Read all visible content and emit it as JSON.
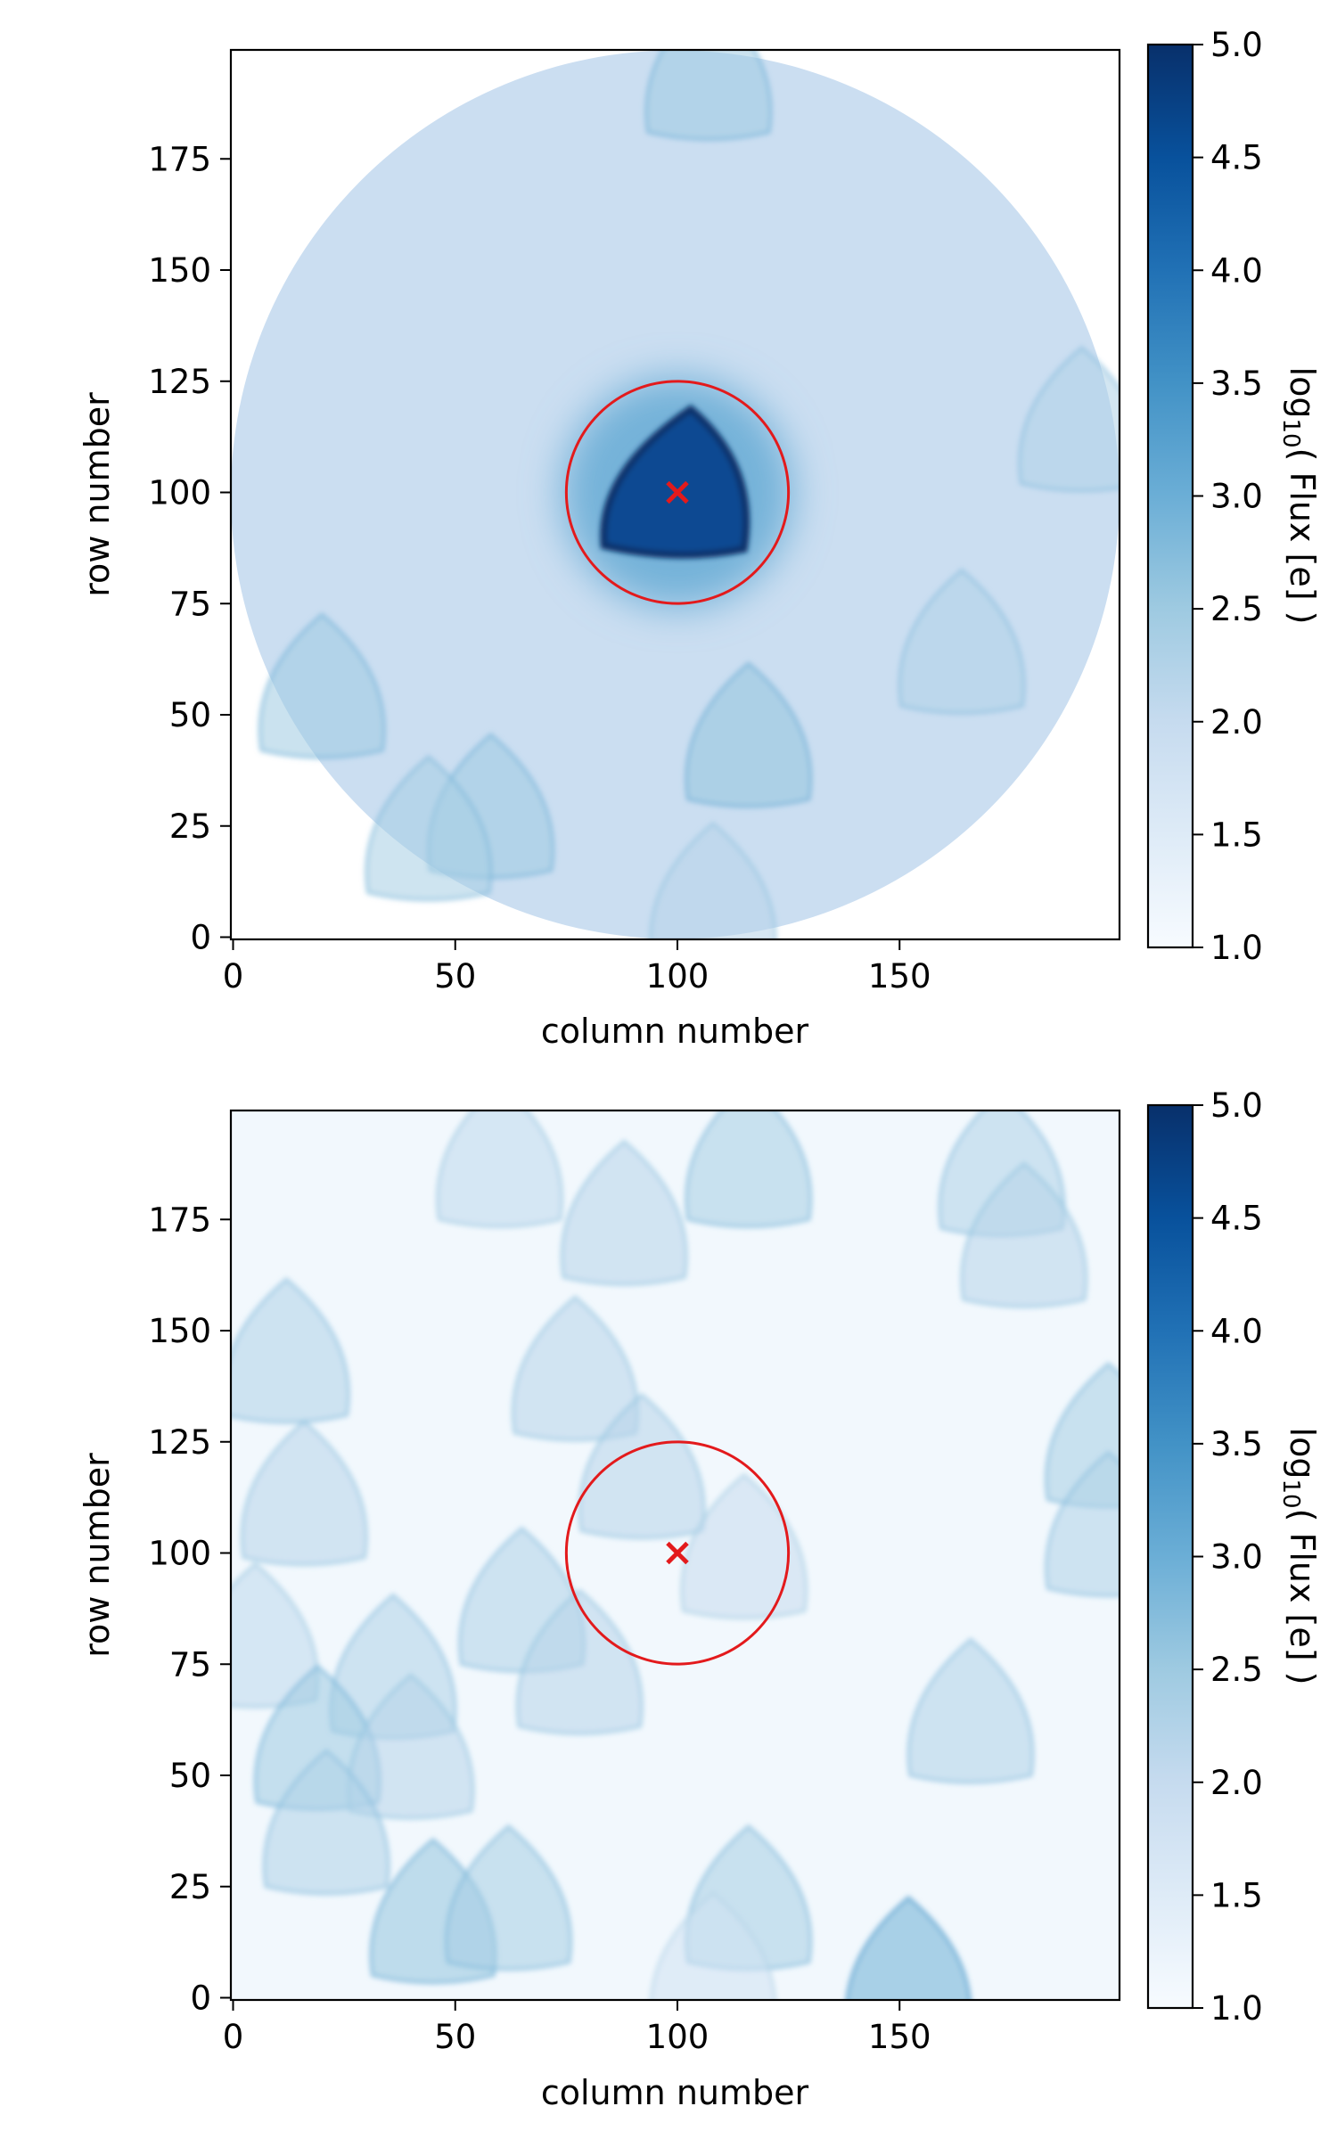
{
  "chart_data": [
    {
      "type": "heatmap",
      "title": "",
      "xlabel": "column number",
      "ylabel": "row number",
      "xlim": [
        0,
        199
      ],
      "ylim": [
        0,
        199
      ],
      "xticks": [
        "0",
        "50",
        "100",
        "150"
      ],
      "yticks": [
        "0",
        "25",
        "50",
        "75",
        "100",
        "125",
        "150",
        "175"
      ],
      "colormap": "Blues",
      "colorbar": {
        "label_main": "log",
        "label_sub": "10",
        "label_rest": "( Flux [e] )",
        "range": [
          1.0,
          5.0
        ],
        "ticks": [
          "1.0",
          "1.5",
          "2.0",
          "2.5",
          "3.0",
          "3.5",
          "4.0",
          "4.5",
          "5.0"
        ]
      },
      "aperture": "circular",
      "marker": {
        "x": 100,
        "y": 100,
        "symbol": "x",
        "color": "#e31a1c"
      },
      "circle": {
        "x": 100,
        "y": 100,
        "radius": 25,
        "color": "#e31a1c"
      },
      "scene": {
        "background_level": 1.9,
        "target": {
          "x": 100,
          "y": 100,
          "level": 4.6
        },
        "ghosts": [
          {
            "x": 107,
            "y": 194,
            "level": 2.5
          },
          {
            "x": 116,
            "y": 44,
            "level": 2.6
          },
          {
            "x": 20,
            "y": 55,
            "level": 2.5
          },
          {
            "x": 58,
            "y": 28,
            "level": 2.5
          },
          {
            "x": 44,
            "y": 23,
            "level": 2.4
          },
          {
            "x": 164,
            "y": 65,
            "level": 2.3
          },
          {
            "x": 191,
            "y": 115,
            "level": 2.3
          },
          {
            "x": 108,
            "y": 8,
            "level": 2.2
          }
        ]
      }
    },
    {
      "type": "heatmap",
      "title": "",
      "xlabel": "column number",
      "ylabel": "row number",
      "xlim": [
        0,
        199
      ],
      "ylim": [
        0,
        199
      ],
      "xticks": [
        "0",
        "50",
        "100",
        "150"
      ],
      "yticks": [
        "0",
        "25",
        "50",
        "75",
        "100",
        "125",
        "150",
        "175"
      ],
      "colormap": "Blues",
      "colorbar": {
        "label_main": "log",
        "label_sub": "10",
        "label_rest": "( Flux [e] )",
        "range": [
          1.0,
          5.0
        ],
        "ticks": [
          "1.0",
          "1.5",
          "2.0",
          "2.5",
          "3.0",
          "3.5",
          "4.0",
          "4.5",
          "5.0"
        ]
      },
      "aperture": "full",
      "marker": {
        "x": 100,
        "y": 100,
        "symbol": "x",
        "color": "#e31a1c"
      },
      "circle": {
        "x": 100,
        "y": 100,
        "radius": 25,
        "color": "#e31a1c"
      },
      "scene": {
        "background_level": 1.1,
        "target": null,
        "ghosts": [
          {
            "x": 116,
            "y": 188,
            "level": 2.4
          },
          {
            "x": 60,
            "y": 188,
            "level": 2.1
          },
          {
            "x": 173,
            "y": 186,
            "level": 2.3
          },
          {
            "x": 178,
            "y": 170,
            "level": 2.2
          },
          {
            "x": 88,
            "y": 175,
            "level": 2.2
          },
          {
            "x": 12,
            "y": 144,
            "level": 2.3
          },
          {
            "x": 77,
            "y": 140,
            "level": 2.2
          },
          {
            "x": 197,
            "y": 125,
            "level": 2.4
          },
          {
            "x": 16,
            "y": 112,
            "level": 2.2
          },
          {
            "x": 92,
            "y": 118,
            "level": 2.2
          },
          {
            "x": 197,
            "y": 105,
            "level": 2.3
          },
          {
            "x": 5,
            "y": 80,
            "level": 2.1
          },
          {
            "x": 65,
            "y": 88,
            "level": 2.3
          },
          {
            "x": 115,
            "y": 100,
            "level": 2.0
          },
          {
            "x": 36,
            "y": 73,
            "level": 2.3
          },
          {
            "x": 78,
            "y": 74,
            "level": 2.2
          },
          {
            "x": 19,
            "y": 57,
            "level": 2.5
          },
          {
            "x": 166,
            "y": 63,
            "level": 2.3
          },
          {
            "x": 40,
            "y": 55,
            "level": 2.2
          },
          {
            "x": 21,
            "y": 38,
            "level": 2.3
          },
          {
            "x": 116,
            "y": 21,
            "level": 2.4
          },
          {
            "x": 45,
            "y": 18,
            "level": 2.6
          },
          {
            "x": 62,
            "y": 21,
            "level": 2.4
          },
          {
            "x": 152,
            "y": 5,
            "level": 3.0
          },
          {
            "x": 108,
            "y": 6,
            "level": 1.8
          }
        ]
      }
    }
  ]
}
